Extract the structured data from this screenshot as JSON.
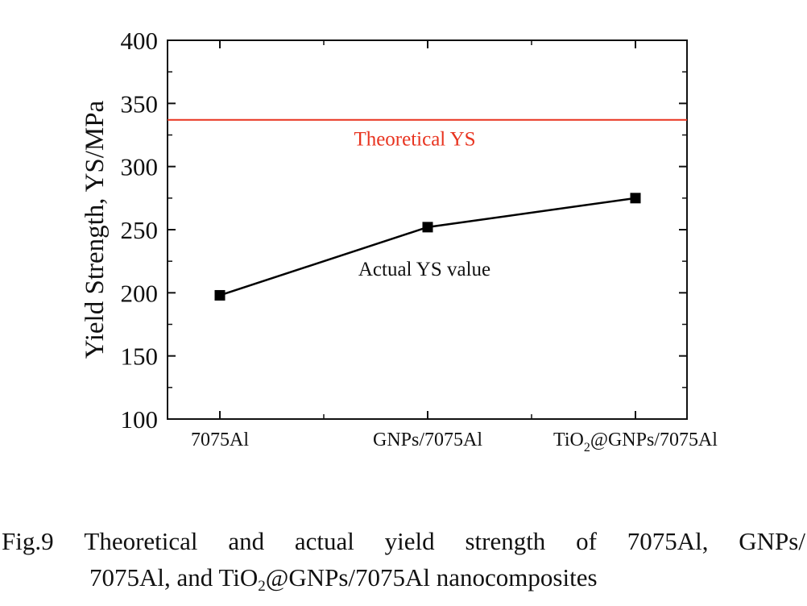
{
  "chart_data": {
    "type": "line",
    "categories": [
      "7075Al",
      "GNPs/7075Al",
      "TiO2@GNPs/7075Al"
    ],
    "category_labels": [
      {
        "main": "7075Al",
        "sub": "",
        "rest": ""
      },
      {
        "main": "GNPs/7075Al",
        "sub": "",
        "rest": ""
      },
      {
        "main": "TiO",
        "sub": "2",
        "rest": "@GNPs/7075Al"
      }
    ],
    "series": [
      {
        "name": "Actual YS value",
        "values": [
          198,
          252,
          275
        ],
        "color": "#000000",
        "marker": "square"
      }
    ],
    "reference_lines": [
      {
        "name": "Theoretical YS",
        "value": 337,
        "color": "#e8331f"
      }
    ],
    "ylabel": "Yield Strength, YS/MPa",
    "xlabel": "",
    "ylim": [
      100,
      400
    ],
    "yticks": [
      "100",
      "150",
      "200",
      "250",
      "300",
      "350",
      "400"
    ],
    "grid": false
  },
  "caption": {
    "line1_words": [
      "Fig.9",
      "Theoretical",
      "and",
      "actual",
      "yield",
      "strength",
      "of",
      "7075Al,",
      "GNPs/"
    ],
    "line2_prefix": "7075Al, and TiO",
    "line2_sub": "2",
    "line2_suffix": "@GNPs/7075Al nanocomposites"
  }
}
